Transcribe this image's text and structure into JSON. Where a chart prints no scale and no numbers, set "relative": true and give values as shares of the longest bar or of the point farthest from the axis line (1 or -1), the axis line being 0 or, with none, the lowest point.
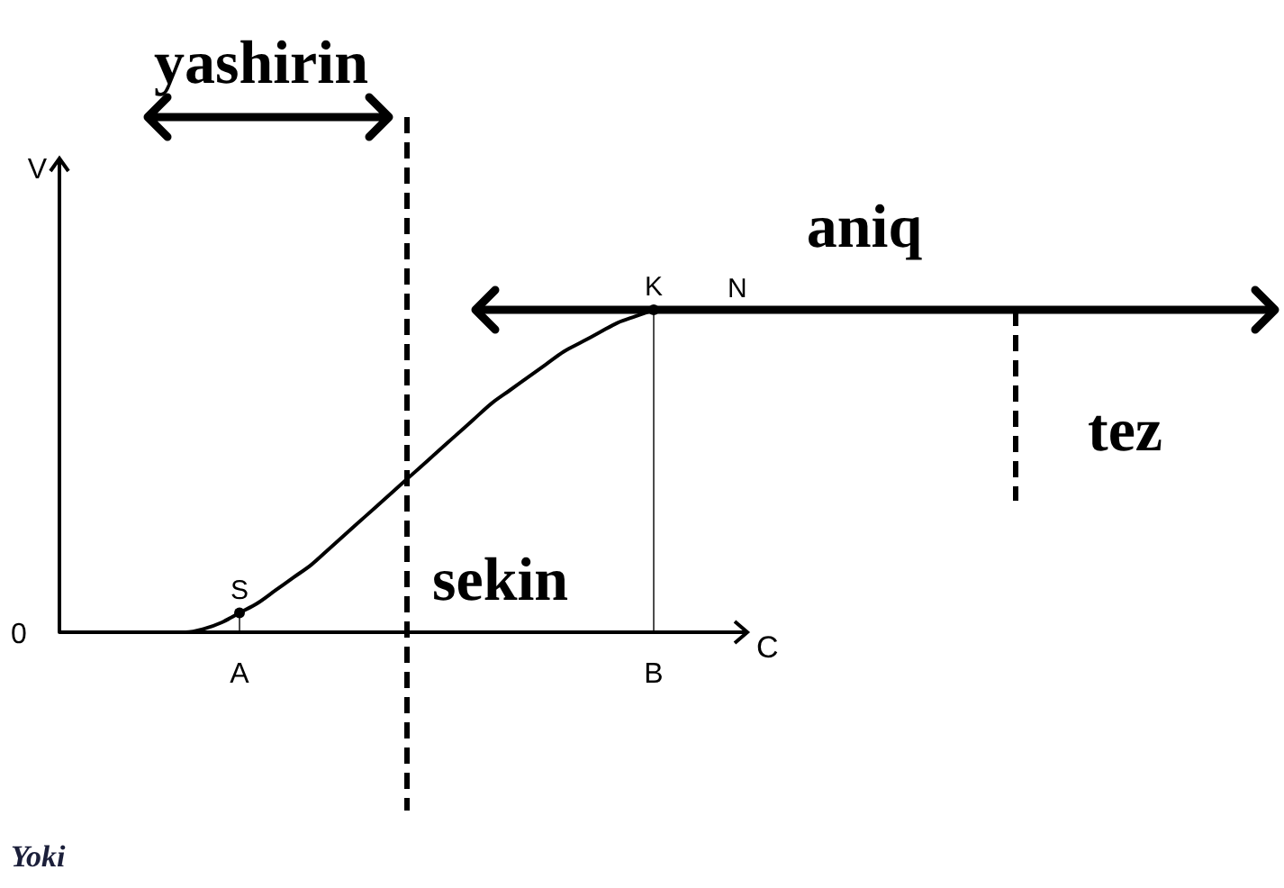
{
  "chart_data": {
    "type": "line",
    "relative": true,
    "xlabel": "C",
    "ylabel": "V",
    "categories": [
      null,
      null,
      null,
      null,
      null,
      null,
      null,
      null,
      null,
      null,
      "A",
      null,
      null,
      null,
      null,
      null,
      null,
      null,
      null,
      null,
      null,
      null,
      null,
      null,
      null,
      null,
      null,
      null,
      null,
      null,
      null,
      null,
      null,
      "B",
      null,
      null,
      null,
      null
    ],
    "series": [
      {
        "color": "#000000",
        "values": [
          0,
          0,
          0,
          0,
          0,
          0,
          0,
          0,
          0.01,
          0.03,
          0.06,
          0.09,
          0.13,
          0.17,
          0.21,
          0.26,
          0.31,
          0.36,
          0.41,
          0.46,
          0.51,
          0.56,
          0.61,
          0.66,
          0.71,
          0.75,
          0.79,
          0.83,
          0.87,
          0.9,
          0.93,
          0.96,
          0.98,
          1,
          null,
          null,
          null,
          null
        ]
      },
      {
        "type": "lollipop",
        "color": "#000000",
        "values": [
          null,
          null,
          null,
          null,
          null,
          null,
          null,
          null,
          null,
          null,
          0.06,
          null,
          null,
          null,
          null,
          null,
          null,
          null,
          null,
          null,
          null,
          null,
          null,
          null,
          null,
          null,
          null,
          null,
          null,
          null,
          null,
          null,
          null,
          1,
          null,
          null,
          null,
          null
        ]
      }
    ],
    "ref_lines": [
      {
        "axis": "y",
        "value": 1,
        "label": "aniq",
        "color": "#000000"
      }
    ],
    "annotations": [
      "yashirin",
      "sekin",
      "tez",
      "0",
      {
        "text": "S",
        "x": "A",
        "y": 0.06
      },
      {
        "text": "K",
        "x": "B",
        "y": 1
      },
      "N",
      "Yoki"
    ]
  }
}
